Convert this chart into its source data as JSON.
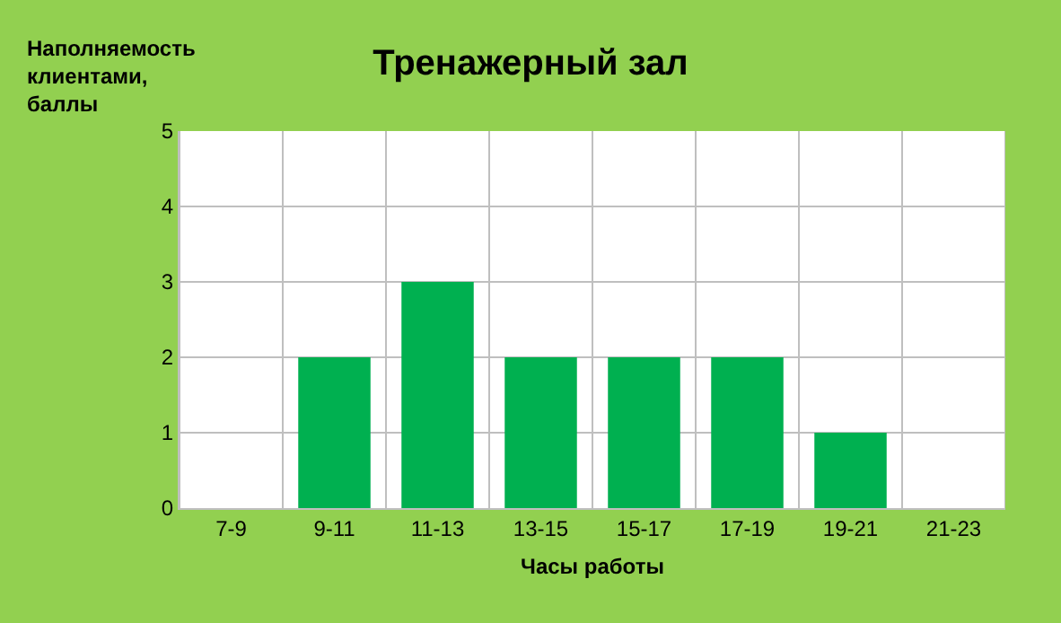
{
  "chart_data": {
    "type": "bar",
    "title": "Тренажерный зал",
    "xlabel": "Часы работы",
    "ylabel": "Наполняемость клиентами, баллы",
    "categories": [
      "7-9",
      "9-11",
      "11-13",
      "13-15",
      "15-17",
      "17-19",
      "19-21",
      "21-23"
    ],
    "values": [
      0,
      2,
      3,
      2,
      2,
      2,
      1,
      0
    ],
    "color": "#00b050",
    "ylim": [
      0,
      5
    ],
    "yticks": [
      0,
      1,
      2,
      3,
      4,
      5
    ],
    "grid": true,
    "legend": false
  }
}
